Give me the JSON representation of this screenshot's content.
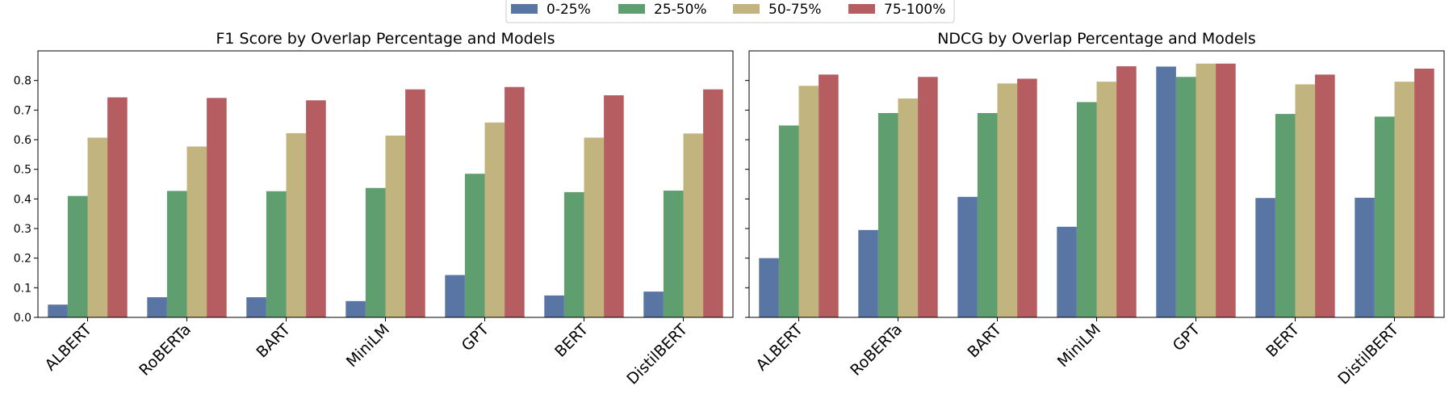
{
  "legend": {
    "placement": "top-center",
    "entries": [
      {
        "label": "0-25%",
        "color": "#5875a4"
      },
      {
        "label": "25-50%",
        "color": "#5f9e6e"
      },
      {
        "label": "50-75%",
        "color": "#c2b47e"
      },
      {
        "label": "75-100%",
        "color": "#b55d60"
      }
    ]
  },
  "chart_data": [
    {
      "type": "bar",
      "title": "F1 Score by Overlap Percentage and Models",
      "xlabel": "",
      "ylabel": "",
      "ylim": [
        0,
        0.9
      ],
      "yticks": [
        0.0,
        0.1,
        0.2,
        0.3,
        0.4,
        0.5,
        0.6,
        0.7,
        0.8
      ],
      "ytick_labels": [
        "0.0",
        "0.1",
        "0.2",
        "0.3",
        "0.4",
        "0.5",
        "0.6",
        "0.7",
        "0.8"
      ],
      "grid": false,
      "categories": [
        "ALBERT",
        "RoBERTa",
        "BART",
        "MiniLM",
        "GPT",
        "BERT",
        "DistilBERT"
      ],
      "series": [
        {
          "name": "0-25%",
          "values": [
            0.043,
            0.068,
            0.068,
            0.055,
            0.143,
            0.074,
            0.087
          ]
        },
        {
          "name": "25-50%",
          "values": [
            0.41,
            0.427,
            0.426,
            0.437,
            0.485,
            0.423,
            0.428
          ]
        },
        {
          "name": "50-75%",
          "values": [
            0.607,
            0.577,
            0.622,
            0.614,
            0.658,
            0.607,
            0.621
          ]
        },
        {
          "name": "75-100%",
          "values": [
            0.743,
            0.741,
            0.733,
            0.77,
            0.778,
            0.75,
            0.77
          ]
        }
      ]
    },
    {
      "type": "bar",
      "title": "NDCG by Overlap Percentage and Models",
      "xlabel": "",
      "ylabel": "",
      "ylim": [
        0,
        0.9
      ],
      "yticks": [
        0.0,
        0.1,
        0.2,
        0.3,
        0.4,
        0.5,
        0.6,
        0.7,
        0.8
      ],
      "ytick_labels": [],
      "grid": false,
      "categories": [
        "ALBERT",
        "RoBERTa",
        "BART",
        "MiniLM",
        "GPT",
        "BERT",
        "DistilBERT"
      ],
      "series": [
        {
          "name": "0-25%",
          "values": [
            0.2,
            0.295,
            0.407,
            0.306,
            0.847,
            0.403,
            0.404
          ]
        },
        {
          "name": "25-50%",
          "values": [
            0.648,
            0.69,
            0.69,
            0.727,
            0.812,
            0.687,
            0.678
          ]
        },
        {
          "name": "50-75%",
          "values": [
            0.782,
            0.739,
            0.79,
            0.796,
            0.857,
            0.787,
            0.796
          ]
        },
        {
          "name": "75-100%",
          "values": [
            0.82,
            0.812,
            0.806,
            0.848,
            0.857,
            0.82,
            0.84
          ]
        }
      ]
    }
  ]
}
